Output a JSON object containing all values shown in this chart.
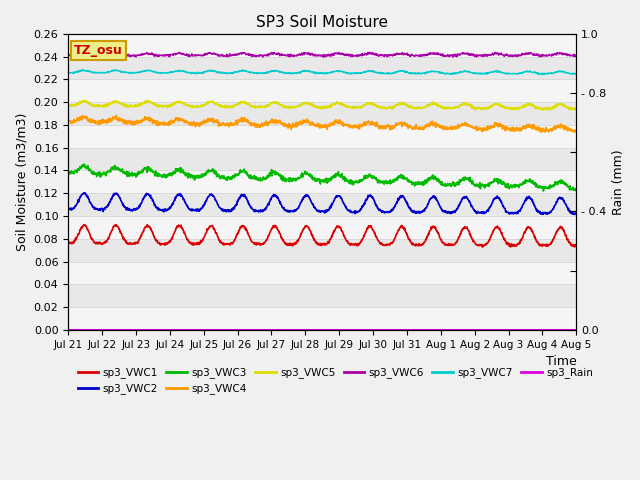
{
  "title": "SP3 Soil Moisture",
  "xlabel": "Time",
  "ylabel_left": "Soil Moisture (m3/m3)",
  "ylabel_right": "Rain (mm)",
  "ylim_left": [
    0.0,
    0.26
  ],
  "ylim_right": [
    0.0,
    1.0
  ],
  "background_color": "#f0f0f0",
  "plot_bg_color": "#e8e8e8",
  "tz_label": "TZ_osu",
  "x_tick_labels": [
    "Jul 21",
    "Jul 22",
    "Jul 23",
    "Jul 24",
    "Jul 25",
    "Jul 26",
    "Jul 27",
    "Jul 28",
    "Jul 29",
    "Jul 30",
    "Jul 31",
    "Aug 1",
    "Aug 2",
    "Aug 3",
    "Aug 4",
    "Aug 5"
  ],
  "n_points": 1500,
  "series": {
    "sp3_VWC1": {
      "color": "#dd0000",
      "base": 0.076,
      "amp": 0.008,
      "trend": -0.002,
      "noise": 0.0005,
      "label": "sp3_VWC1"
    },
    "sp3_VWC2": {
      "color": "#0000cc",
      "base": 0.106,
      "amp": 0.007,
      "trend": -0.004,
      "noise": 0.0005,
      "label": "sp3_VWC2"
    },
    "sp3_VWC3": {
      "color": "#00bb00",
      "base": 0.138,
      "amp": 0.003,
      "trend": -0.014,
      "noise": 0.001,
      "label": "sp3_VWC3"
    },
    "sp3_VWC4": {
      "color": "#ff9900",
      "base": 0.183,
      "amp": 0.002,
      "trend": -0.008,
      "noise": 0.001,
      "label": "sp3_VWC4"
    },
    "sp3_VWC5": {
      "color": "#dddd00",
      "base": 0.197,
      "amp": 0.002,
      "trend": -0.003,
      "noise": 0.0005,
      "label": "sp3_VWC5"
    },
    "sp3_VWC6": {
      "color": "#aa00aa",
      "base": 0.241,
      "amp": 0.001,
      "trend": 0.0,
      "noise": 0.0005,
      "label": "sp3_VWC6"
    },
    "sp3_VWC7": {
      "color": "#00cccc",
      "base": 0.226,
      "amp": 0.001,
      "trend": -0.001,
      "noise": 0.0003,
      "label": "sp3_VWC7"
    },
    "sp3_Rain": {
      "color": "#dd00dd",
      "base": 0.0,
      "amp": 0.0,
      "trend": 0.0,
      "noise": 0.0,
      "label": "sp3_Rain"
    }
  },
  "legend_order": [
    "sp3_VWC1",
    "sp3_VWC2",
    "sp3_VWC3",
    "sp3_VWC4",
    "sp3_VWC5",
    "sp3_VWC6",
    "sp3_VWC7",
    "sp3_Rain"
  ],
  "legend_ncol1": 6,
  "figsize": [
    6.4,
    4.8
  ],
  "dpi": 100
}
